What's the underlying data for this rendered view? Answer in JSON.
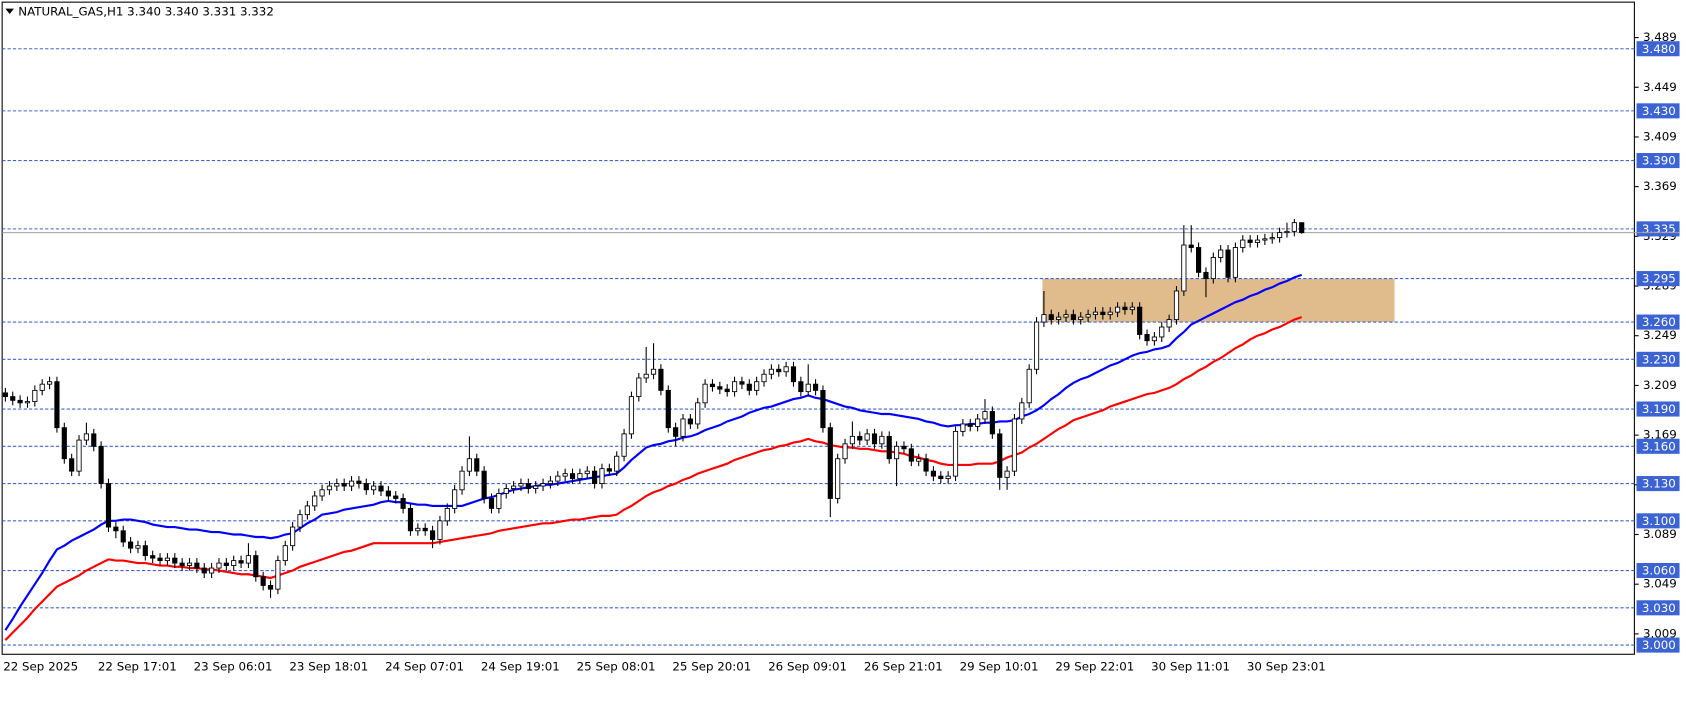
{
  "chart_data": {
    "type": "candlestick",
    "title": "NATURAL_GAS,H1  3.340 3.340 3.331 3.332",
    "categories": [
      "22 Sep 2025",
      null,
      null,
      null,
      null,
      null,
      null,
      null,
      null,
      null,
      null,
      null,
      null,
      "22 Sep 17:01",
      null,
      null,
      null,
      null,
      null,
      null,
      null,
      null,
      null,
      null,
      null,
      null,
      "23 Sep 06:01",
      null,
      null,
      null,
      null,
      null,
      null,
      null,
      null,
      null,
      null,
      null,
      null,
      "23 Sep 18:01",
      null,
      null,
      null,
      null,
      null,
      null,
      null,
      null,
      null,
      null,
      null,
      null,
      "24 Sep 07:01",
      null,
      null,
      null,
      null,
      null,
      null,
      null,
      null,
      null,
      null,
      null,
      null,
      "24 Sep 19:01",
      null,
      null,
      null,
      null,
      null,
      null,
      null,
      null,
      null,
      null,
      null,
      null,
      "25 Sep 08:01",
      null,
      null,
      null,
      null,
      null,
      null,
      null,
      null,
      null,
      null,
      null,
      null,
      "25 Sep 20:01",
      null,
      null,
      null,
      null,
      null,
      null,
      null,
      null,
      null,
      null,
      null,
      null,
      "26 Sep 09:01",
      null,
      null,
      null,
      null,
      null,
      null,
      null,
      null,
      null,
      null,
      null,
      null,
      "26 Sep 21:01",
      null,
      null,
      null,
      null,
      null,
      null,
      null,
      null,
      null,
      null,
      null,
      null,
      "29 Sep 10:01",
      null,
      null,
      null,
      null,
      null,
      null,
      null,
      null,
      null,
      null,
      null,
      null,
      "29 Sep 22:01",
      null,
      null,
      null,
      null,
      null,
      null,
      null,
      null,
      null,
      null,
      null,
      null,
      "30 Sep 11:01",
      null,
      null,
      null,
      null,
      null,
      null,
      null,
      null,
      null,
      null,
      null,
      null,
      "30 Sep 23:01",
      null,
      null,
      null,
      null,
      null,
      null,
      null
    ],
    "open": [
      3.203,
      3.2,
      3.197,
      3.195,
      3.196,
      3.205,
      3.21,
      3.212,
      3.175,
      3.15,
      3.14,
      3.165,
      3.17,
      3.16,
      3.13,
      3.095,
      3.092,
      3.083,
      3.078,
      3.08,
      3.072,
      3.07,
      3.068,
      3.07,
      3.066,
      3.064,
      3.066,
      3.062,
      3.058,
      3.062,
      3.066,
      3.064,
      3.068,
      3.066,
      3.072,
      3.055,
      3.048,
      3.045,
      3.068,
      3.08,
      3.095,
      3.105,
      3.112,
      3.12,
      3.125,
      3.128,
      3.13,
      3.128,
      3.132,
      3.13,
      3.125,
      3.128,
      3.124,
      3.12,
      3.118,
      3.11,
      3.092,
      3.094,
      3.092,
      3.085,
      3.1,
      3.11,
      3.125,
      3.14,
      3.15,
      3.14,
      3.118,
      3.11,
      3.122,
      3.126,
      3.128,
      3.13,
      3.126,
      3.128,
      3.13,
      3.132,
      3.136,
      3.138,
      3.134,
      3.138,
      3.14,
      3.13,
      3.142,
      3.14,
      3.152,
      3.17,
      3.2,
      3.215,
      3.218,
      3.222,
      3.205,
      3.175,
      3.168,
      3.182,
      3.178,
      3.195,
      3.21,
      3.208,
      3.206,
      3.204,
      3.212,
      3.21,
      3.205,
      3.212,
      3.218,
      3.222,
      3.22,
      3.224,
      3.212,
      3.204,
      3.21,
      3.205,
      3.175,
      3.118,
      3.15,
      3.162,
      3.168,
      3.165,
      3.17,
      3.162,
      3.168,
      3.15,
      3.16,
      3.158,
      3.148,
      3.15,
      3.14,
      3.136,
      3.134,
      3.136,
      3.172,
      3.178,
      3.176,
      3.182,
      3.188,
      3.17,
      3.135,
      3.14,
      3.182,
      3.195,
      3.222,
      3.26,
      3.266,
      3.262,
      3.264,
      3.266,
      3.262,
      3.264,
      3.266,
      3.268,
      3.266,
      3.268,
      3.272,
      3.27,
      3.272,
      3.25,
      3.245,
      3.248,
      3.256,
      3.262,
      3.285,
      3.322,
      3.32,
      3.3,
      3.295,
      3.312,
      3.318,
      3.296,
      3.32,
      3.326,
      3.324,
      3.326,
      3.327,
      3.328,
      3.332,
      3.333,
      3.34
    ],
    "high": [
      3.207,
      3.204,
      3.201,
      3.2,
      3.209,
      3.214,
      3.216,
      3.216,
      3.179,
      3.154,
      3.169,
      3.179,
      3.174,
      3.164,
      3.134,
      3.099,
      3.096,
      3.087,
      3.084,
      3.084,
      3.076,
      3.074,
      3.074,
      3.074,
      3.07,
      3.07,
      3.07,
      3.066,
      3.066,
      3.07,
      3.07,
      3.072,
      3.072,
      3.082,
      3.076,
      3.059,
      3.052,
      3.072,
      3.084,
      3.099,
      3.109,
      3.116,
      3.124,
      3.129,
      3.132,
      3.134,
      3.134,
      3.136,
      3.136,
      3.134,
      3.132,
      3.132,
      3.128,
      3.124,
      3.122,
      3.114,
      3.098,
      3.098,
      3.096,
      3.104,
      3.114,
      3.129,
      3.144,
      3.168,
      3.154,
      3.144,
      3.122,
      3.126,
      3.13,
      3.132,
      3.134,
      3.134,
      3.132,
      3.134,
      3.136,
      3.14,
      3.142,
      3.142,
      3.142,
      3.144,
      3.144,
      3.146,
      3.146,
      3.156,
      3.174,
      3.204,
      3.219,
      3.24,
      3.243,
      3.226,
      3.209,
      3.179,
      3.186,
      3.186,
      3.199,
      3.214,
      3.214,
      3.212,
      3.21,
      3.216,
      3.216,
      3.214,
      3.216,
      3.222,
      3.226,
      3.226,
      3.228,
      3.228,
      3.216,
      3.226,
      3.214,
      3.209,
      3.179,
      3.154,
      3.166,
      3.18,
      3.172,
      3.174,
      3.174,
      3.172,
      3.172,
      3.164,
      3.164,
      3.162,
      3.154,
      3.154,
      3.144,
      3.14,
      3.14,
      3.176,
      3.182,
      3.182,
      3.186,
      3.198,
      3.192,
      3.174,
      3.144,
      3.186,
      3.199,
      3.226,
      3.264,
      3.285,
      3.27,
      3.268,
      3.27,
      3.27,
      3.268,
      3.27,
      3.272,
      3.272,
      3.272,
      3.276,
      3.276,
      3.276,
      3.276,
      3.254,
      3.252,
      3.26,
      3.266,
      3.289,
      3.338,
      3.338,
      3.324,
      3.304,
      3.316,
      3.322,
      3.322,
      3.324,
      3.33,
      3.33,
      3.33,
      3.331,
      3.332,
      3.336,
      3.34,
      3.343,
      3.34
    ],
    "low": [
      3.196,
      3.193,
      3.191,
      3.191,
      3.192,
      3.201,
      3.206,
      3.171,
      3.146,
      3.136,
      3.136,
      3.161,
      3.156,
      3.126,
      3.091,
      3.086,
      3.079,
      3.074,
      3.074,
      3.068,
      3.066,
      3.064,
      3.064,
      3.062,
      3.06,
      3.06,
      3.058,
      3.054,
      3.054,
      3.058,
      3.06,
      3.06,
      3.062,
      3.062,
      3.051,
      3.044,
      3.038,
      3.041,
      3.064,
      3.076,
      3.091,
      3.101,
      3.108,
      3.116,
      3.121,
      3.124,
      3.124,
      3.124,
      3.126,
      3.121,
      3.121,
      3.12,
      3.116,
      3.114,
      3.106,
      3.088,
      3.088,
      3.088,
      3.078,
      3.081,
      3.096,
      3.106,
      3.121,
      3.136,
      3.136,
      3.114,
      3.106,
      3.106,
      3.118,
      3.122,
      3.124,
      3.122,
      3.122,
      3.124,
      3.126,
      3.128,
      3.132,
      3.13,
      3.13,
      3.134,
      3.126,
      3.126,
      3.136,
      3.136,
      3.148,
      3.166,
      3.196,
      3.211,
      3.214,
      3.201,
      3.171,
      3.16,
      3.164,
      3.174,
      3.174,
      3.191,
      3.204,
      3.202,
      3.2,
      3.2,
      3.206,
      3.201,
      3.201,
      3.208,
      3.214,
      3.216,
      3.216,
      3.208,
      3.2,
      3.2,
      3.201,
      3.171,
      3.103,
      3.114,
      3.146,
      3.158,
      3.161,
      3.161,
      3.158,
      3.158,
      3.146,
      3.128,
      3.154,
      3.144,
      3.144,
      3.136,
      3.132,
      3.13,
      3.13,
      3.132,
      3.168,
      3.172,
      3.172,
      3.178,
      3.166,
      3.125,
      3.125,
      3.136,
      3.178,
      3.191,
      3.218,
      3.256,
      3.258,
      3.258,
      3.26,
      3.258,
      3.258,
      3.26,
      3.262,
      3.262,
      3.262,
      3.264,
      3.266,
      3.266,
      3.246,
      3.241,
      3.241,
      3.244,
      3.252,
      3.258,
      3.281,
      3.316,
      3.296,
      3.28,
      3.291,
      3.308,
      3.292,
      3.292,
      3.316,
      3.32,
      3.32,
      3.322,
      3.323,
      3.324,
      3.328,
      3.329,
      3.331
    ],
    "close": [
      3.2,
      3.197,
      3.195,
      3.196,
      3.205,
      3.21,
      3.212,
      3.175,
      3.15,
      3.14,
      3.165,
      3.17,
      3.16,
      3.13,
      3.095,
      3.092,
      3.083,
      3.078,
      3.08,
      3.072,
      3.07,
      3.068,
      3.07,
      3.066,
      3.064,
      3.066,
      3.062,
      3.058,
      3.062,
      3.066,
      3.064,
      3.068,
      3.066,
      3.072,
      3.055,
      3.048,
      3.045,
      3.068,
      3.08,
      3.095,
      3.105,
      3.112,
      3.12,
      3.125,
      3.128,
      3.13,
      3.128,
      3.132,
      3.13,
      3.125,
      3.128,
      3.124,
      3.12,
      3.118,
      3.11,
      3.092,
      3.094,
      3.092,
      3.085,
      3.1,
      3.11,
      3.125,
      3.14,
      3.15,
      3.14,
      3.118,
      3.11,
      3.122,
      3.126,
      3.128,
      3.13,
      3.126,
      3.128,
      3.13,
      3.132,
      3.136,
      3.138,
      3.134,
      3.138,
      3.14,
      3.13,
      3.142,
      3.14,
      3.152,
      3.17,
      3.2,
      3.215,
      3.218,
      3.222,
      3.205,
      3.175,
      3.168,
      3.182,
      3.178,
      3.195,
      3.21,
      3.208,
      3.206,
      3.204,
      3.212,
      3.21,
      3.205,
      3.212,
      3.218,
      3.222,
      3.22,
      3.224,
      3.212,
      3.204,
      3.21,
      3.205,
      3.175,
      3.118,
      3.15,
      3.162,
      3.168,
      3.165,
      3.17,
      3.162,
      3.168,
      3.15,
      3.16,
      3.158,
      3.148,
      3.15,
      3.14,
      3.136,
      3.134,
      3.136,
      3.172,
      3.178,
      3.176,
      3.182,
      3.188,
      3.17,
      3.135,
      3.14,
      3.182,
      3.195,
      3.222,
      3.26,
      3.266,
      3.262,
      3.264,
      3.266,
      3.262,
      3.264,
      3.266,
      3.268,
      3.266,
      3.268,
      3.272,
      3.27,
      3.272,
      3.25,
      3.245,
      3.248,
      3.256,
      3.262,
      3.285,
      3.322,
      3.32,
      3.3,
      3.295,
      3.312,
      3.318,
      3.296,
      3.32,
      3.326,
      3.324,
      3.326,
      3.327,
      3.328,
      3.332,
      3.333,
      3.34,
      3.332
    ],
    "up_color": "#ffffff",
    "down_color": "#000000",
    "ma": [
      {
        "color": "#0000ff",
        "values": [
          3.012,
          3.021,
          3.031,
          3.04,
          3.049,
          3.058,
          3.068,
          3.077,
          3.08,
          3.084,
          3.087,
          3.09,
          3.093,
          3.097,
          3.1,
          3.1,
          3.101,
          3.101,
          3.1,
          3.099,
          3.097,
          3.096,
          3.095,
          3.095,
          3.094,
          3.093,
          3.093,
          3.092,
          3.091,
          3.091,
          3.09,
          3.089,
          3.089,
          3.088,
          3.087,
          3.087,
          3.086,
          3.087,
          3.089,
          3.09,
          3.094,
          3.098,
          3.101,
          3.105,
          3.106,
          3.107,
          3.109,
          3.11,
          3.111,
          3.112,
          3.113,
          3.115,
          3.116,
          3.115,
          3.115,
          3.114,
          3.113,
          3.113,
          3.112,
          3.112,
          3.112,
          3.112,
          3.112,
          3.114,
          3.116,
          3.118,
          3.119,
          3.121,
          3.123,
          3.125,
          3.126,
          3.127,
          3.128,
          3.129,
          3.129,
          3.13,
          3.131,
          3.132,
          3.133,
          3.134,
          3.135,
          3.136,
          3.137,
          3.138,
          3.143,
          3.149,
          3.154,
          3.159,
          3.161,
          3.162,
          3.164,
          3.165,
          3.167,
          3.168,
          3.17,
          3.173,
          3.175,
          3.177,
          3.18,
          3.182,
          3.184,
          3.187,
          3.189,
          3.191,
          3.192,
          3.194,
          3.196,
          3.198,
          3.199,
          3.201,
          3.199,
          3.198,
          3.196,
          3.194,
          3.192,
          3.191,
          3.189,
          3.188,
          3.187,
          3.186,
          3.186,
          3.185,
          3.184,
          3.183,
          3.182,
          3.18,
          3.179,
          3.177,
          3.176,
          3.177,
          3.177,
          3.178,
          3.178,
          3.179,
          3.179,
          3.18,
          3.18,
          3.181,
          3.184,
          3.186,
          3.189,
          3.193,
          3.198,
          3.202,
          3.207,
          3.211,
          3.214,
          3.216,
          3.219,
          3.222,
          3.225,
          3.227,
          3.23,
          3.233,
          3.235,
          3.236,
          3.238,
          3.239,
          3.241,
          3.247,
          3.252,
          3.258,
          3.261,
          3.264,
          3.267,
          3.27,
          3.273,
          3.276,
          3.278,
          3.281,
          3.283,
          3.286,
          3.288,
          3.291,
          3.293,
          3.296,
          3.298
        ]
      },
      {
        "color": "#ff0000",
        "values": [
          3.004,
          3.01,
          3.016,
          3.022,
          3.029,
          3.035,
          3.041,
          3.047,
          3.05,
          3.053,
          3.056,
          3.06,
          3.063,
          3.066,
          3.069,
          3.068,
          3.068,
          3.067,
          3.066,
          3.066,
          3.065,
          3.064,
          3.064,
          3.063,
          3.063,
          3.062,
          3.062,
          3.061,
          3.061,
          3.06,
          3.059,
          3.058,
          3.057,
          3.057,
          3.056,
          3.055,
          3.054,
          3.056,
          3.058,
          3.06,
          3.063,
          3.065,
          3.067,
          3.069,
          3.071,
          3.073,
          3.075,
          3.076,
          3.078,
          3.08,
          3.082,
          3.082,
          3.082,
          3.082,
          3.082,
          3.082,
          3.082,
          3.082,
          3.082,
          3.083,
          3.084,
          3.085,
          3.086,
          3.087,
          3.088,
          3.089,
          3.09,
          3.092,
          3.093,
          3.094,
          3.095,
          3.096,
          3.097,
          3.098,
          3.098,
          3.099,
          3.1,
          3.101,
          3.101,
          3.102,
          3.103,
          3.104,
          3.104,
          3.105,
          3.109,
          3.112,
          3.116,
          3.12,
          3.123,
          3.125,
          3.128,
          3.13,
          3.133,
          3.135,
          3.138,
          3.14,
          3.142,
          3.144,
          3.146,
          3.149,
          3.151,
          3.153,
          3.155,
          3.157,
          3.158,
          3.16,
          3.161,
          3.163,
          3.164,
          3.166,
          3.164,
          3.163,
          3.161,
          3.16,
          3.159,
          3.159,
          3.158,
          3.158,
          3.157,
          3.156,
          3.156,
          3.155,
          3.154,
          3.152,
          3.151,
          3.149,
          3.148,
          3.146,
          3.145,
          3.145,
          3.145,
          3.145,
          3.146,
          3.146,
          3.146,
          3.148,
          3.151,
          3.153,
          3.155,
          3.159,
          3.162,
          3.166,
          3.17,
          3.174,
          3.177,
          3.181,
          3.183,
          3.185,
          3.187,
          3.189,
          3.192,
          3.194,
          3.196,
          3.198,
          3.2,
          3.202,
          3.203,
          3.205,
          3.207,
          3.21,
          3.214,
          3.217,
          3.221,
          3.224,
          3.228,
          3.231,
          3.235,
          3.239,
          3.242,
          3.246,
          3.249,
          3.251,
          3.254,
          3.256,
          3.259,
          3.262,
          3.264
        ]
      }
    ],
    "ylim": [
      2.9926,
      3.5175
    ],
    "yticks": [
      3.489,
      3.449,
      3.409,
      3.369,
      3.329,
      3.289,
      3.249,
      3.209,
      3.169,
      3.129,
      3.089,
      3.049,
      3.009
    ],
    "levels": [
      {
        "value": 3.48,
        "label": "3.480"
      },
      {
        "value": 3.43,
        "label": "3.430"
      },
      {
        "value": 3.39,
        "label": "3.390"
      },
      3.335,
      3.295,
      {
        "value": 3.26,
        "label": "3.260"
      },
      {
        "value": 3.23,
        "label": "3.230"
      },
      {
        "value": 3.19,
        "label": "3.190"
      },
      {
        "value": 3.16,
        "label": "3.160"
      },
      {
        "value": 3.13,
        "label": "3.130"
      },
      {
        "value": 3.1,
        "label": "3.100"
      },
      {
        "value": 3.06,
        "label": "3.060"
      },
      {
        "value": 3.03,
        "label": "3.030"
      },
      {
        "value": 3,
        "label": "3.000"
      }
    ],
    "level_color": "#3b63d4",
    "zone": {
      "high": 3.295,
      "low": 3.26,
      "color": "#deb887"
    },
    "last_price_line": true,
    "grid": false
  }
}
